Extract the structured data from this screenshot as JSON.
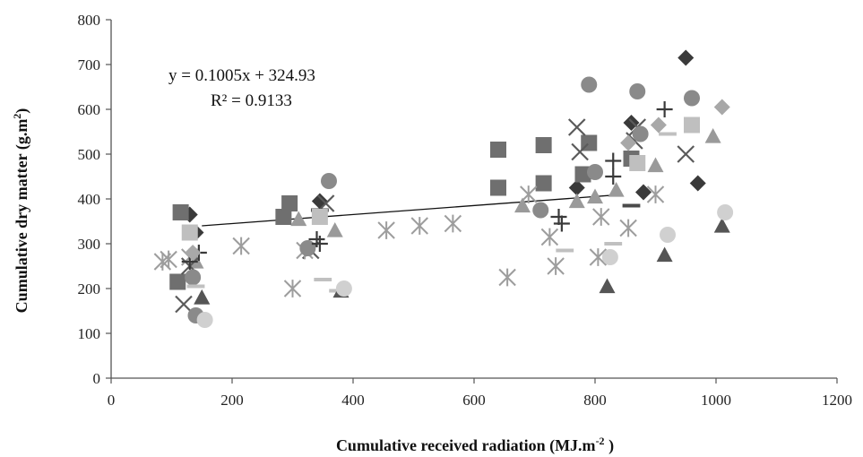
{
  "chart_data": {
    "type": "scatter",
    "xlabel": "Cumulative received radiation (MJ.m",
    "xlabel_sup": "-2",
    "xlabel_end": " )",
    "ylabel": "Cumulative dry matter (g.m",
    "ylabel_sup": "2",
    "ylabel_end": ")",
    "xlim": [
      0,
      1200
    ],
    "ylim": [
      0,
      800
    ],
    "xticks": [
      "0",
      "200",
      "400",
      "600",
      "800",
      "1000",
      "1200"
    ],
    "yticks": [
      "0",
      "100",
      "200",
      "300",
      "400",
      "500",
      "600",
      "700",
      "800"
    ],
    "grid": false,
    "legend": "none",
    "equation": "y = 0.1005x + 324.93",
    "r2": "R² = 0.9133",
    "trendline": {
      "slope": 0.1005,
      "intercept": 324.93,
      "x_range": [
        150,
        835
      ],
      "color": "#111111"
    },
    "series": [
      {
        "marker": "diamond",
        "color": "#3a3a3a",
        "points": [
          [
            130,
            365
          ],
          [
            140,
            325
          ],
          [
            345,
            395
          ],
          [
            770,
            425
          ],
          [
            860,
            570
          ],
          [
            880,
            415
          ],
          [
            950,
            715
          ],
          [
            970,
            435
          ],
          [
            960,
            625
          ]
        ]
      },
      {
        "marker": "square",
        "color": "#6f6f6f",
        "points": [
          [
            115,
            370
          ],
          [
            110,
            215
          ],
          [
            285,
            360
          ],
          [
            295,
            390
          ],
          [
            640,
            510
          ],
          [
            640,
            425
          ],
          [
            715,
            520
          ],
          [
            715,
            435
          ],
          [
            790,
            525
          ],
          [
            780,
            455
          ],
          [
            860,
            490
          ]
        ]
      },
      {
        "marker": "triangle",
        "color": "#9a9a9a",
        "points": [
          [
            140,
            260
          ],
          [
            150,
            180
          ],
          [
            310,
            355
          ],
          [
            370,
            330
          ],
          [
            680,
            385
          ],
          [
            770,
            395
          ],
          [
            800,
            405
          ],
          [
            835,
            420
          ],
          [
            900,
            475
          ],
          [
            995,
            540
          ]
        ]
      },
      {
        "marker": "x",
        "color": "#5a5a5a",
        "points": [
          [
            120,
            165
          ],
          [
            130,
            250
          ],
          [
            330,
            285
          ],
          [
            355,
            390
          ],
          [
            770,
            560
          ],
          [
            775,
            505
          ],
          [
            865,
            530
          ],
          [
            870,
            560
          ],
          [
            950,
            500
          ]
        ]
      },
      {
        "marker": "asterisk",
        "color": "#9d9d9d",
        "points": [
          [
            85,
            260
          ],
          [
            95,
            265
          ],
          [
            130,
            270
          ],
          [
            215,
            295
          ],
          [
            300,
            200
          ],
          [
            320,
            285
          ],
          [
            455,
            330
          ],
          [
            510,
            340
          ],
          [
            565,
            345
          ],
          [
            655,
            225
          ],
          [
            690,
            410
          ],
          [
            725,
            315
          ],
          [
            735,
            250
          ],
          [
            805,
            270
          ],
          [
            810,
            360
          ],
          [
            855,
            335
          ],
          [
            900,
            410
          ]
        ]
      },
      {
        "marker": "circle",
        "color": "#8a8a8a",
        "points": [
          [
            135,
            225
          ],
          [
            140,
            140
          ],
          [
            325,
            290
          ],
          [
            360,
            440
          ],
          [
            710,
            375
          ],
          [
            790,
            655
          ],
          [
            870,
            640
          ],
          [
            875,
            545
          ],
          [
            960,
            625
          ],
          [
            800,
            460
          ]
        ]
      },
      {
        "marker": "plus",
        "color": "#3a3a3a",
        "points": [
          [
            130,
            260
          ],
          [
            145,
            280
          ],
          [
            340,
            310
          ],
          [
            345,
            300
          ],
          [
            740,
            360
          ],
          [
            745,
            345
          ],
          [
            830,
            485
          ],
          [
            830,
            450
          ],
          [
            915,
            600
          ]
        ]
      },
      {
        "marker": "dash",
        "color": "#c0c0c0",
        "points": [
          [
            140,
            205
          ],
          [
            350,
            220
          ],
          [
            375,
            195
          ],
          [
            750,
            285
          ],
          [
            830,
            300
          ],
          [
            920,
            545
          ]
        ]
      },
      {
        "marker": "dash",
        "color": "#4a4a4a",
        "points": [
          [
            345,
            375
          ],
          [
            860,
            385
          ]
        ]
      },
      {
        "marker": "triangle",
        "color": "#555555",
        "points": [
          [
            150,
            180
          ],
          [
            380,
            195
          ],
          [
            820,
            205
          ],
          [
            915,
            275
          ],
          [
            1010,
            340
          ]
        ]
      },
      {
        "marker": "circle",
        "color": "#d0d0d0",
        "points": [
          [
            155,
            130
          ],
          [
            385,
            200
          ],
          [
            825,
            270
          ],
          [
            920,
            320
          ],
          [
            1015,
            370
          ]
        ]
      },
      {
        "marker": "square",
        "color": "#bfbfbf",
        "points": [
          [
            130,
            325
          ],
          [
            345,
            360
          ],
          [
            870,
            480
          ],
          [
            960,
            565
          ]
        ]
      },
      {
        "marker": "diamond",
        "color": "#a8a8a8",
        "points": [
          [
            135,
            280
          ],
          [
            855,
            525
          ],
          [
            905,
            565
          ],
          [
            1010,
            605
          ]
        ]
      }
    ]
  }
}
